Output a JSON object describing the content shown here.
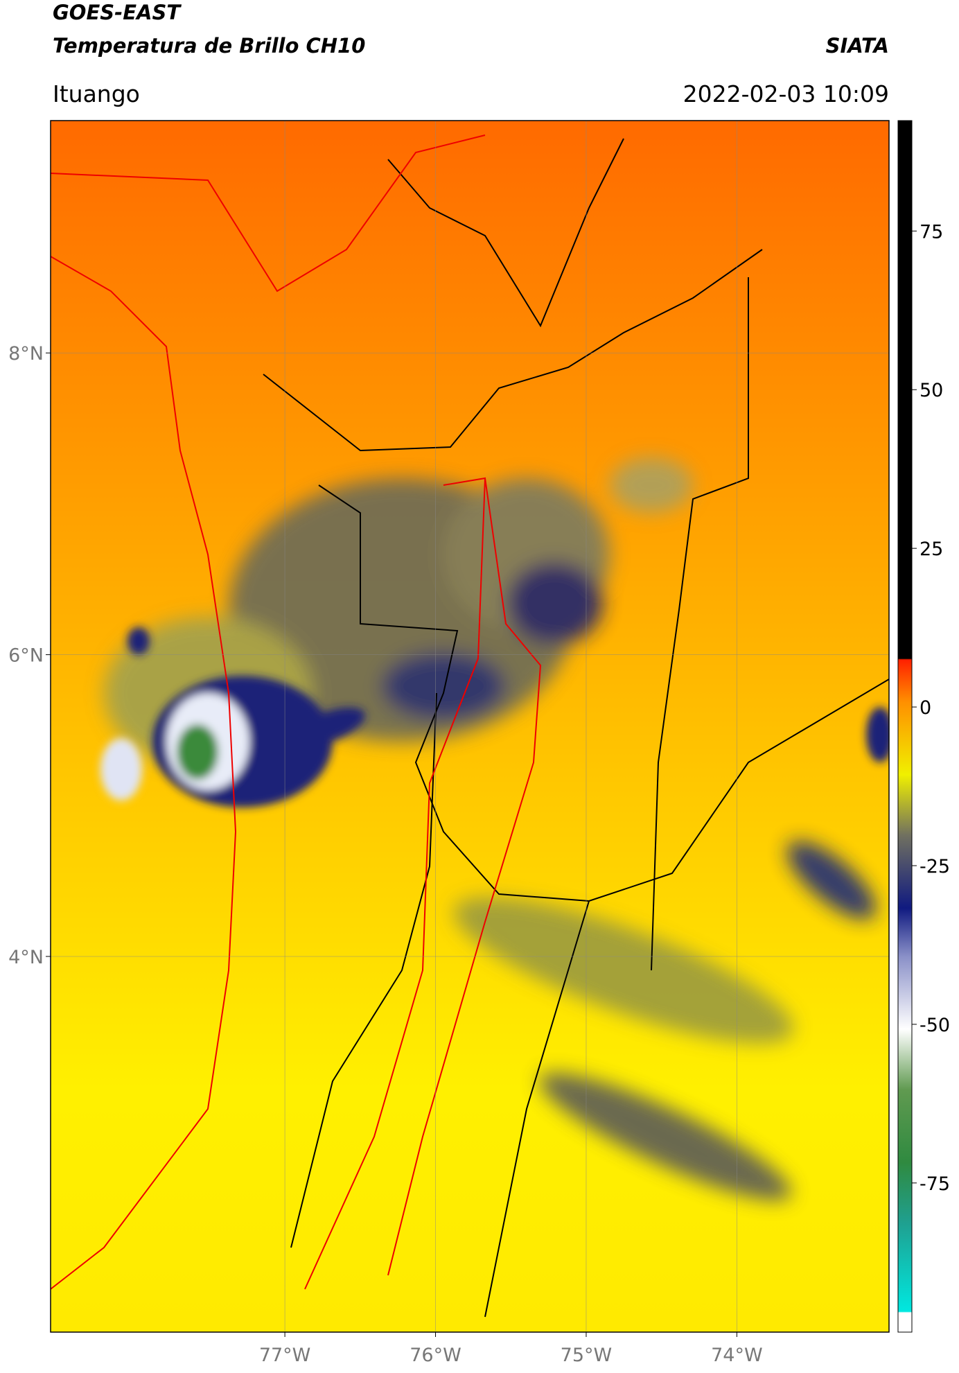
{
  "header": {
    "title": "GOES-EAST",
    "subtitle": "Temperatura de Brillo CH10",
    "source": "SIATA",
    "location": "Ituango",
    "datetime": "2022-02-03 10:09"
  },
  "map": {
    "xlim": [
      -78.555,
      -72.99
    ],
    "ylim": [
      1.51,
      9.54
    ],
    "xticks": [
      {
        "value": -77,
        "label": "77°W"
      },
      {
        "value": -76,
        "label": "76°W"
      },
      {
        "value": -75,
        "label": "75°W"
      },
      {
        "value": -74,
        "label": "74°W"
      }
    ],
    "yticks": [
      {
        "value": 8,
        "label": "8°N"
      },
      {
        "value": 6,
        "label": "6°N"
      },
      {
        "value": 4,
        "label": "4°N"
      }
    ],
    "grid": true
  },
  "colorbar": {
    "lim": [
      -98.5,
      92.4
    ],
    "ticks": [
      75,
      50,
      25,
      0,
      -25,
      -50,
      -75
    ]
  }
}
